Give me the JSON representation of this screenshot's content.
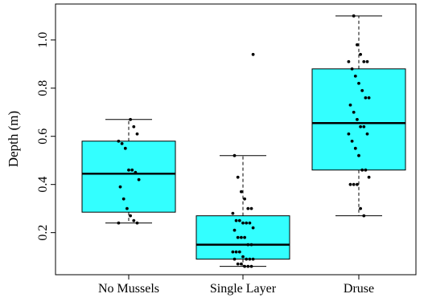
{
  "chart_data": {
    "type": "boxplot",
    "title": "",
    "xlabel": "",
    "ylabel": "Depth (m)",
    "ylim": [
      0.03,
      1.13
    ],
    "yticks": [
      0.2,
      0.4,
      0.6,
      0.8,
      1.0
    ],
    "ytick_labels": [
      "0.2",
      "0.4",
      "0.6",
      "0.8",
      "1.0"
    ],
    "box_color": "#33FFFF",
    "categories": [
      "No Mussels",
      "Single Layer",
      "Druse"
    ],
    "boxes": [
      {
        "name": "No Mussels",
        "whisker_low": 0.24,
        "q1": 0.285,
        "median": 0.445,
        "q3": 0.58,
        "whisker_high": 0.67,
        "points": [
          0.24,
          0.24,
          0.25,
          0.27,
          0.3,
          0.34,
          0.39,
          0.42,
          0.45,
          0.46,
          0.46,
          0.55,
          0.57,
          0.58,
          0.61,
          0.64,
          0.67
        ]
      },
      {
        "name": "Single Layer",
        "whisker_low": 0.06,
        "q1": 0.09,
        "median": 0.15,
        "q3": 0.27,
        "whisker_high": 0.52,
        "points": [
          0.06,
          0.06,
          0.06,
          0.07,
          0.07,
          0.09,
          0.09,
          0.09,
          0.09,
          0.1,
          0.12,
          0.12,
          0.12,
          0.15,
          0.15,
          0.18,
          0.18,
          0.18,
          0.21,
          0.22,
          0.24,
          0.24,
          0.24,
          0.25,
          0.25,
          0.28,
          0.3,
          0.3,
          0.34,
          0.37,
          0.43,
          0.52,
          0.94
        ]
      },
      {
        "name": "Druse",
        "whisker_low": 0.27,
        "q1": 0.46,
        "median": 0.655,
        "q3": 0.88,
        "whisker_high": 1.1,
        "points": [
          0.27,
          0.3,
          0.4,
          0.4,
          0.4,
          0.43,
          0.46,
          0.46,
          0.52,
          0.55,
          0.58,
          0.61,
          0.61,
          0.64,
          0.64,
          0.67,
          0.7,
          0.73,
          0.76,
          0.76,
          0.79,
          0.82,
          0.85,
          0.88,
          0.91,
          0.91,
          0.91,
          0.94,
          0.98,
          1.1
        ]
      }
    ]
  }
}
